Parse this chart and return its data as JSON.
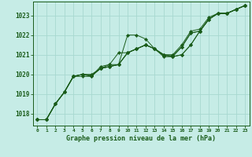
{
  "title": "Graphe pression niveau de la mer (hPa)",
  "bg_color": "#c6ece6",
  "plot_bg_color": "#c6ece6",
  "grid_color": "#a8d8d0",
  "line_color": "#1a5c1a",
  "text_color": "#1a5c1a",
  "xlim": [
    -0.5,
    23.5
  ],
  "ylim": [
    1017.4,
    1023.7
  ],
  "yticks": [
    1018,
    1019,
    1020,
    1021,
    1022,
    1023
  ],
  "xticks": [
    0,
    1,
    2,
    3,
    4,
    5,
    6,
    7,
    8,
    9,
    10,
    11,
    12,
    13,
    14,
    15,
    16,
    17,
    18,
    19,
    20,
    21,
    22,
    23
  ],
  "series": [
    [
      1017.7,
      1017.7,
      1018.5,
      1019.1,
      1019.9,
      1019.9,
      1019.9,
      1020.4,
      1020.5,
      1020.5,
      1022.0,
      1022.0,
      1021.8,
      1021.3,
      1021.0,
      1021.0,
      1021.5,
      1022.2,
      1022.3,
      1022.9,
      1023.1,
      1023.1,
      1023.3,
      1023.5
    ],
    [
      1017.7,
      1017.7,
      1018.5,
      1019.1,
      1019.9,
      1020.0,
      1019.9,
      1020.3,
      1020.5,
      1021.1,
      1021.1,
      1021.3,
      1021.5,
      1021.3,
      1021.0,
      1020.9,
      1021.0,
      1021.5,
      1022.2,
      1022.8,
      1023.1,
      1023.1,
      1023.3,
      1023.5
    ],
    [
      1017.7,
      1017.7,
      1018.5,
      1019.1,
      1019.9,
      1020.0,
      1019.95,
      1020.3,
      1020.4,
      1020.5,
      1021.1,
      1021.3,
      1021.5,
      1021.3,
      1021.0,
      1020.9,
      1021.0,
      1021.5,
      1022.2,
      1022.8,
      1023.1,
      1023.1,
      1023.3,
      1023.5
    ],
    [
      1017.7,
      1017.7,
      1018.5,
      1019.1,
      1019.9,
      1020.0,
      1019.95,
      1020.3,
      1020.4,
      1020.5,
      1021.1,
      1021.3,
      1021.5,
      1021.3,
      1020.95,
      1020.95,
      1021.4,
      1022.1,
      1022.2,
      1022.8,
      1023.1,
      1023.1,
      1023.3,
      1023.5
    ],
    [
      1017.7,
      1017.7,
      1018.5,
      1019.1,
      1019.9,
      1020.0,
      1020.0,
      1020.3,
      1020.4,
      1020.5,
      1021.1,
      1021.3,
      1021.5,
      1021.3,
      1020.9,
      1020.9,
      1021.4,
      1022.1,
      1022.2,
      1022.8,
      1023.1,
      1023.1,
      1023.3,
      1023.5
    ]
  ],
  "marker_indices": {
    "0": [
      0,
      1,
      2,
      3,
      10,
      11
    ],
    "1": [
      0,
      1,
      2,
      3,
      4,
      5,
      6,
      7,
      8,
      9,
      10,
      11,
      12,
      13,
      14,
      15,
      16,
      17,
      18,
      19,
      20,
      21,
      22,
      23
    ],
    "2": [],
    "3": [],
    "4": []
  }
}
